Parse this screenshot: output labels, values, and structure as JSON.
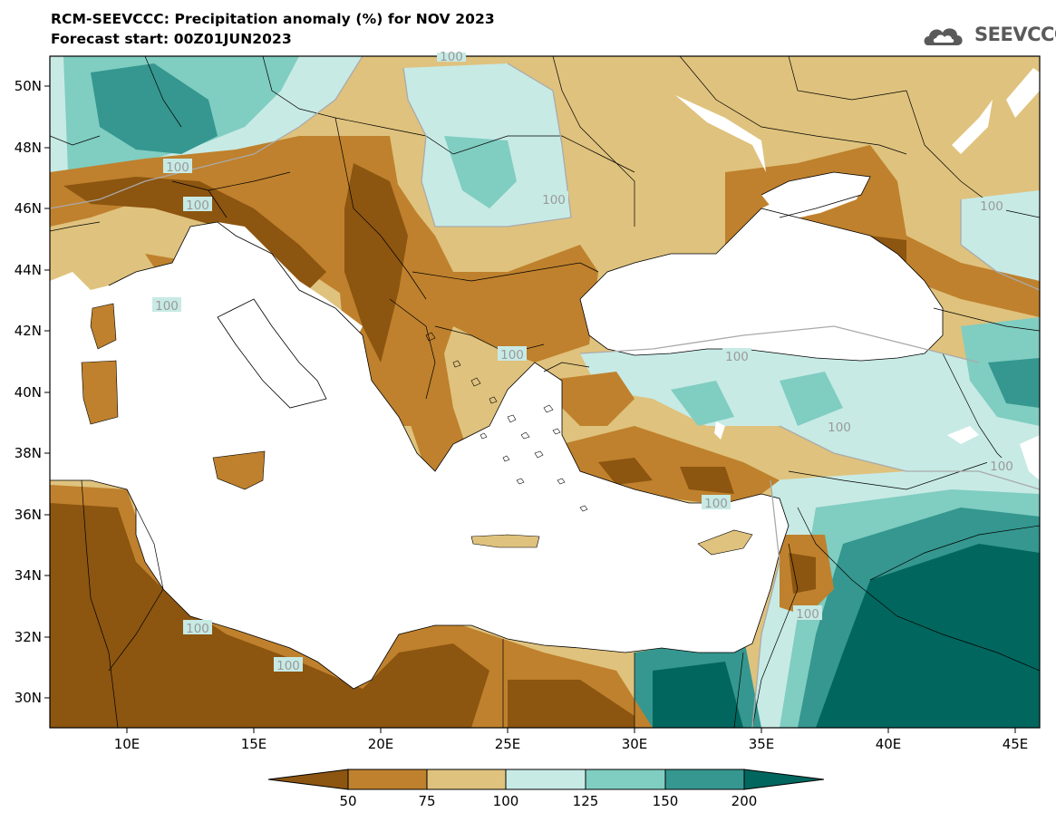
{
  "header": {
    "title_line1": "RCM-SEEVCCC: Precipitation anomaly (%) for NOV 2023",
    "title_line2": "Forecast start: 00Z01JUN2023",
    "logo_text": "SEEVCCC",
    "logo_icon": "cloud-logo-icon"
  },
  "map": {
    "lat_labels": [
      "50N",
      "48N",
      "46N",
      "44N",
      "42N",
      "40N",
      "38N",
      "36N",
      "34N",
      "32N",
      "30N"
    ],
    "lon_labels": [
      "10E",
      "15E",
      "20E",
      "25E",
      "30E",
      "35E",
      "40E",
      "45E"
    ],
    "contour_labels": [
      "100",
      "100",
      "100",
      "100",
      "100",
      "100",
      "100",
      "100",
      "100",
      "100",
      "100",
      "100",
      "100",
      "100"
    ]
  },
  "colorbar": {
    "tick_labels": [
      "50",
      "75",
      "100",
      "125",
      "150",
      "200"
    ],
    "colors": [
      "#8c5510",
      "#bf812d",
      "#dfc27d",
      "#c7eae5",
      "#80cdc1",
      "#35978f",
      "#01665e"
    ]
  }
}
